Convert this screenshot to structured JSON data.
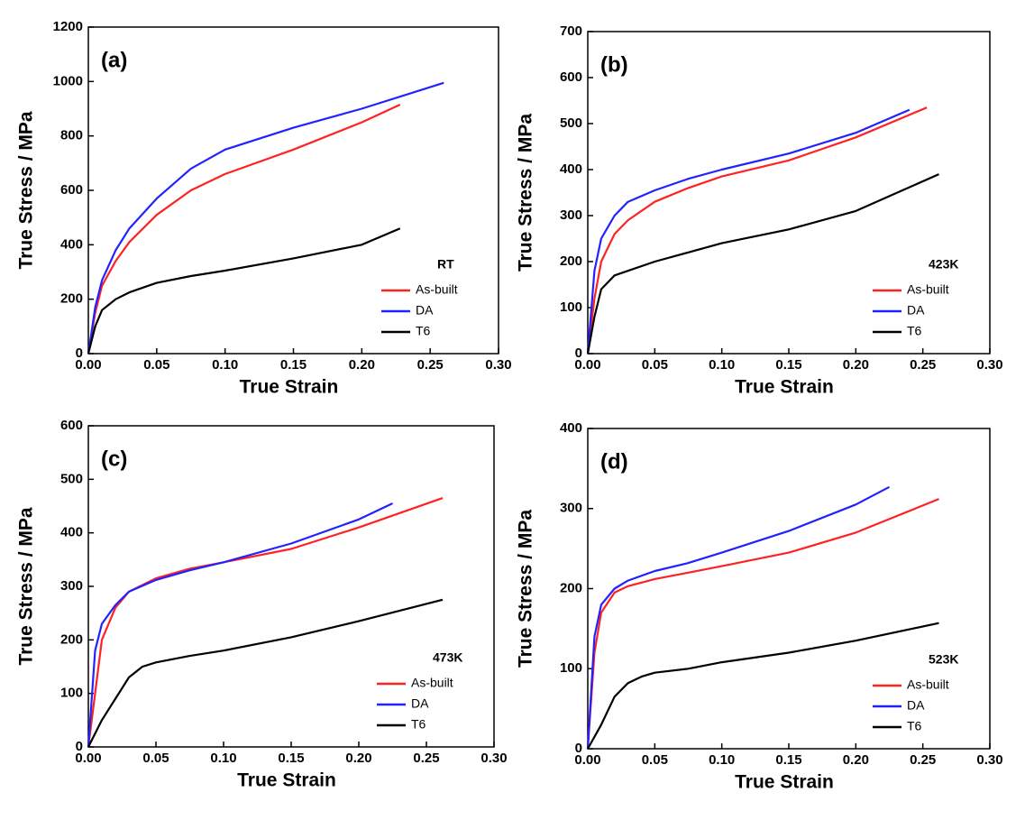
{
  "chart_data": [
    {
      "type": "line",
      "label": "(a)",
      "condition": "RT",
      "xlabel": "True Strain",
      "ylabel": "True Stress / MPa",
      "xlim": [
        0,
        0.3
      ],
      "ylim": [
        0,
        1200
      ],
      "xticks": [
        {
          "value": 0,
          "label": "0.00"
        },
        0.05,
        {
          "value": 0.1,
          "label": "0.10"
        },
        0.15,
        {
          "value": 0.2,
          "label": "0.20"
        },
        0.25,
        {
          "value": 0.3,
          "label": "0.30"
        }
      ],
      "yticks": [
        0,
        200,
        400,
        600,
        800,
        1000,
        1200
      ],
      "legend": "lower-right",
      "series": [
        {
          "name": "As-built",
          "color": "#ff2222",
          "x": [
            0,
            0.005,
            0.01,
            0.02,
            0.03,
            0.05,
            0.075,
            0.1,
            0.15,
            0.2,
            0.228
          ],
          "values": [
            0,
            150,
            250,
            340,
            410,
            510,
            600,
            660,
            750,
            850,
            915
          ]
        },
        {
          "name": "DA",
          "color": "#2222ff",
          "x": [
            0,
            0.005,
            0.01,
            0.02,
            0.03,
            0.05,
            0.075,
            0.1,
            0.15,
            0.2,
            0.26
          ],
          "values": [
            0,
            170,
            270,
            380,
            460,
            570,
            680,
            750,
            830,
            900,
            995
          ]
        },
        {
          "name": "T6",
          "color": "#000000",
          "x": [
            0,
            0.005,
            0.01,
            0.02,
            0.03,
            0.05,
            0.075,
            0.1,
            0.15,
            0.2,
            0.228
          ],
          "values": [
            0,
            100,
            160,
            200,
            225,
            260,
            285,
            305,
            350,
            400,
            460
          ]
        }
      ]
    },
    {
      "type": "line",
      "label": "(b)",
      "condition": "423K",
      "xlabel": "True Strain",
      "ylabel": "True Stress / MPa",
      "xlim": [
        0,
        0.3
      ],
      "ylim": [
        0,
        700
      ],
      "xticks": [
        {
          "value": 0,
          "label": "0.00"
        },
        0.05,
        {
          "value": 0.1,
          "label": "0.10"
        },
        0.15,
        {
          "value": 0.2,
          "label": "0.20"
        },
        0.25,
        {
          "value": 0.3,
          "label": "0.30"
        }
      ],
      "yticks": [
        0,
        100,
        200,
        300,
        400,
        500,
        600,
        700
      ],
      "legend": "lower-right",
      "series": [
        {
          "name": "As-built",
          "color": "#ff2222",
          "x": [
            0,
            0.005,
            0.01,
            0.02,
            0.03,
            0.05,
            0.075,
            0.1,
            0.15,
            0.2,
            0.253
          ],
          "values": [
            0,
            120,
            200,
            260,
            290,
            330,
            360,
            385,
            420,
            470,
            535
          ]
        },
        {
          "name": "DA",
          "color": "#2222ff",
          "x": [
            0,
            0.005,
            0.01,
            0.02,
            0.03,
            0.05,
            0.075,
            0.1,
            0.15,
            0.2,
            0.24
          ],
          "values": [
            0,
            180,
            250,
            300,
            330,
            355,
            380,
            400,
            435,
            480,
            530
          ]
        },
        {
          "name": "T6",
          "color": "#000000",
          "x": [
            0,
            0.005,
            0.01,
            0.02,
            0.03,
            0.05,
            0.075,
            0.1,
            0.15,
            0.2,
            0.262
          ],
          "values": [
            0,
            80,
            140,
            170,
            180,
            200,
            220,
            240,
            270,
            310,
            390
          ]
        }
      ]
    },
    {
      "type": "line",
      "label": "(c)",
      "condition": "473K",
      "xlabel": "True Strain",
      "ylabel": "True Stress / MPa",
      "xlim": [
        0,
        0.3
      ],
      "ylim": [
        0,
        600
      ],
      "xticks": [
        {
          "value": 0,
          "label": "0.00"
        },
        0.05,
        {
          "value": 0.1,
          "label": "0.10"
        },
        0.15,
        {
          "value": 0.2,
          "label": "0.20"
        },
        0.25,
        {
          "value": 0.3,
          "label": "0.30"
        }
      ],
      "yticks": [
        0,
        100,
        200,
        300,
        400,
        500,
        600
      ],
      "legend": "lower-right",
      "series": [
        {
          "name": "As-built",
          "color": "#ff2222",
          "x": [
            0,
            0.005,
            0.01,
            0.02,
            0.03,
            0.05,
            0.075,
            0.1,
            0.15,
            0.2,
            0.262
          ],
          "values": [
            0,
            100,
            200,
            260,
            290,
            315,
            333,
            345,
            370,
            410,
            465
          ]
        },
        {
          "name": "DA",
          "color": "#2222ff",
          "x": [
            0,
            0.005,
            0.01,
            0.02,
            0.03,
            0.05,
            0.075,
            0.1,
            0.15,
            0.2,
            0.225
          ],
          "values": [
            0,
            180,
            230,
            265,
            290,
            312,
            330,
            345,
            380,
            425,
            455
          ]
        },
        {
          "name": "T6",
          "color": "#000000",
          "x": [
            0,
            0.01,
            0.02,
            0.03,
            0.04,
            0.05,
            0.075,
            0.1,
            0.15,
            0.2,
            0.262
          ],
          "values": [
            0,
            50,
            90,
            130,
            150,
            158,
            170,
            180,
            205,
            235,
            275
          ]
        }
      ]
    },
    {
      "type": "line",
      "label": "(d)",
      "condition": "523K",
      "xlabel": "True Strain",
      "ylabel": "True Stress / MPa",
      "xlim": [
        0,
        0.3
      ],
      "ylim": [
        0,
        400
      ],
      "xticks": [
        {
          "value": 0,
          "label": "0.00"
        },
        0.05,
        {
          "value": 0.1,
          "label": "0.10"
        },
        0.15,
        {
          "value": 0.2,
          "label": "0.20"
        },
        0.25,
        {
          "value": 0.3,
          "label": "0.30"
        }
      ],
      "yticks": [
        0,
        100,
        200,
        300,
        400
      ],
      "legend": "lower-right",
      "series": [
        {
          "name": "As-built",
          "color": "#ff2222",
          "x": [
            0,
            0.005,
            0.01,
            0.02,
            0.03,
            0.05,
            0.075,
            0.1,
            0.15,
            0.2,
            0.262
          ],
          "values": [
            0,
            120,
            170,
            195,
            203,
            212,
            220,
            228,
            245,
            270,
            312
          ]
        },
        {
          "name": "DA",
          "color": "#2222ff",
          "x": [
            0,
            0.005,
            0.01,
            0.02,
            0.03,
            0.05,
            0.075,
            0.1,
            0.15,
            0.2,
            0.225
          ],
          "values": [
            0,
            140,
            180,
            200,
            210,
            222,
            232,
            245,
            272,
            305,
            327
          ]
        },
        {
          "name": "T6",
          "color": "#000000",
          "x": [
            0,
            0.01,
            0.02,
            0.03,
            0.04,
            0.05,
            0.075,
            0.1,
            0.15,
            0.2,
            0.262
          ],
          "values": [
            0,
            30,
            65,
            82,
            90,
            95,
            100,
            108,
            120,
            135,
            157
          ]
        }
      ]
    }
  ]
}
